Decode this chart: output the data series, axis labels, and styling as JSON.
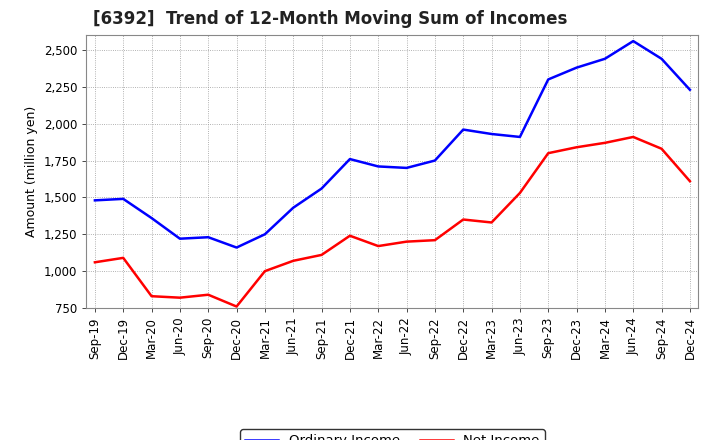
{
  "title": "[6392]  Trend of 12-Month Moving Sum of Incomes",
  "ylabel": "Amount (million yen)",
  "x_labels": [
    "Sep-19",
    "Dec-19",
    "Mar-20",
    "Jun-20",
    "Sep-20",
    "Dec-20",
    "Mar-21",
    "Jun-21",
    "Sep-21",
    "Dec-21",
    "Mar-22",
    "Jun-22",
    "Sep-22",
    "Dec-22",
    "Mar-23",
    "Jun-23",
    "Sep-23",
    "Dec-23",
    "Mar-24",
    "Jun-24",
    "Sep-24",
    "Dec-24"
  ],
  "ordinary_income": [
    1480,
    1490,
    1360,
    1220,
    1230,
    1160,
    1250,
    1430,
    1560,
    1760,
    1710,
    1700,
    1750,
    1960,
    1930,
    1910,
    2300,
    2380,
    2440,
    2560,
    2440,
    2230
  ],
  "net_income": [
    1060,
    1090,
    830,
    820,
    840,
    760,
    1000,
    1070,
    1110,
    1240,
    1170,
    1200,
    1210,
    1350,
    1330,
    1530,
    1800,
    1840,
    1870,
    1910,
    1830,
    1610
  ],
  "ordinary_income_color": "#0000FF",
  "net_income_color": "#FF0000",
  "background_color": "#FFFFFF",
  "plot_bg_color": "#FFFFFF",
  "grid_color": "#999999",
  "ylim": [
    750,
    2600
  ],
  "yticks": [
    750,
    1000,
    1250,
    1500,
    1750,
    2000,
    2250,
    2500
  ],
  "title_fontsize": 12,
  "axis_label_fontsize": 9,
  "tick_fontsize": 8.5,
  "legend_fontsize": 9.5,
  "line_width": 1.8
}
